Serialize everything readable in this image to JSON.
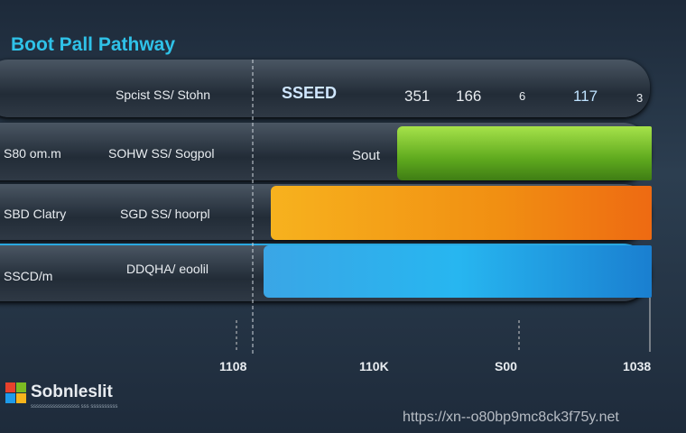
{
  "header": {
    "title": "Boot Pall Pathway"
  },
  "table": {
    "header_row": {
      "label": "Spcist SS/ Stohn",
      "badge": "SSEED",
      "values": [
        "351",
        "166",
        "6",
        "117",
        "3"
      ]
    },
    "rows": [
      {
        "side_label": "S80 om.m",
        "label": "SOHW SS/ Sogpol",
        "bar_label": "Sout"
      },
      {
        "side_label": "SBD Clatry",
        "label": "SGD SS/ hoorpl"
      },
      {
        "side_label": "SSCD/m",
        "label": "DDQHA/ eoolil"
      }
    ],
    "axis_labels": [
      "1108",
      "110K",
      "S00",
      "1038"
    ]
  },
  "footer": {
    "brand": "Sobnleslit",
    "tagline": "ssssssssssssssssss sss ssssssssss",
    "watermark": "https://xn--o80bp9mc8ck3f75y.net"
  }
}
